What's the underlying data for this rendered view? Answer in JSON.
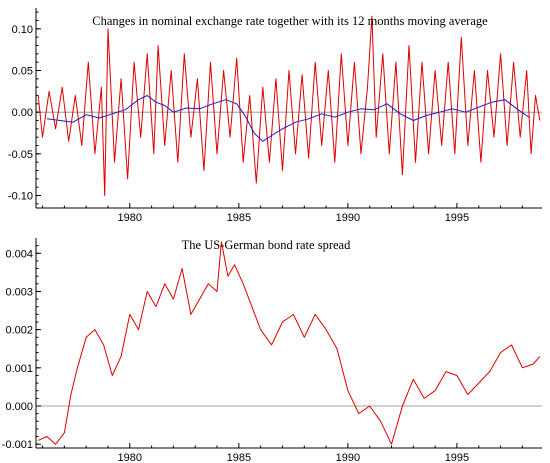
{
  "chart_data": [
    {
      "type": "line",
      "title": "Changes in nominal exchange rate together with its 12 months moving average",
      "xlabel": "",
      "ylabel": "",
      "xlim": [
        1975.7,
        1998.9
      ],
      "ylim": [
        -0.115,
        0.125
      ],
      "x_ticks": [
        1980,
        1985,
        1990,
        1995
      ],
      "y_ticks": [
        -0.1,
        -0.05,
        0.0,
        0.05,
        0.1
      ],
      "y_tick_labels": [
        "-0.10",
        "-0.05",
        "0.00",
        "0.05",
        "0.10"
      ],
      "grid": false,
      "legend": "none",
      "series": [
        {
          "color": "#dd0000",
          "x": [
            1975.8,
            1976.0,
            1976.3,
            1976.6,
            1976.9,
            1977.2,
            1977.5,
            1977.8,
            1978.1,
            1978.4,
            1978.7,
            1978.85,
            1979.0,
            1979.3,
            1979.6,
            1979.9,
            1980.2,
            1980.5,
            1980.8,
            1981.1,
            1981.3,
            1981.6,
            1981.9,
            1982.2,
            1982.5,
            1982.8,
            1983.1,
            1983.4,
            1983.7,
            1984.0,
            1984.3,
            1984.6,
            1984.9,
            1985.2,
            1985.5,
            1985.8,
            1986.1,
            1986.4,
            1986.7,
            1987.0,
            1987.3,
            1987.6,
            1987.9,
            1988.2,
            1988.5,
            1988.8,
            1989.1,
            1989.4,
            1989.7,
            1990.0,
            1990.3,
            1990.6,
            1990.9,
            1991.1,
            1991.3,
            1991.6,
            1991.9,
            1992.2,
            1992.5,
            1992.8,
            1993.1,
            1993.4,
            1993.7,
            1994.0,
            1994.3,
            1994.6,
            1994.9,
            1995.2,
            1995.5,
            1995.8,
            1996.1,
            1996.4,
            1996.7,
            1997.0,
            1997.3,
            1997.6,
            1997.9,
            1998.2,
            1998.4,
            1998.6,
            1998.8
          ],
          "y": [
            0.02,
            -0.03,
            0.025,
            -0.02,
            0.03,
            -0.035,
            0.02,
            -0.04,
            0.06,
            -0.05,
            0.03,
            -0.1,
            0.1,
            -0.06,
            0.04,
            -0.08,
            0.06,
            -0.03,
            0.07,
            -0.05,
            0.08,
            -0.04,
            0.05,
            -0.06,
            0.07,
            -0.03,
            0.04,
            -0.07,
            0.06,
            -0.05,
            0.05,
            -0.03,
            0.065,
            -0.06,
            0.02,
            -0.085,
            0.03,
            -0.06,
            0.04,
            -0.07,
            0.05,
            -0.05,
            0.045,
            -0.055,
            0.06,
            -0.04,
            0.05,
            -0.06,
            0.07,
            -0.04,
            0.06,
            -0.05,
            0.03,
            0.115,
            -0.03,
            0.07,
            -0.05,
            0.06,
            -0.075,
            0.08,
            -0.06,
            0.06,
            -0.05,
            0.05,
            -0.04,
            0.06,
            -0.05,
            0.09,
            -0.04,
            0.05,
            -0.06,
            0.05,
            -0.03,
            0.07,
            -0.04,
            0.06,
            -0.03,
            0.05,
            -0.05,
            0.02,
            -0.01
          ]
        },
        {
          "color": "#1a1acc",
          "x": [
            1976.2,
            1976.8,
            1977.4,
            1978.0,
            1978.6,
            1979.2,
            1979.8,
            1980.4,
            1980.8,
            1981.2,
            1981.6,
            1982.0,
            1982.6,
            1983.2,
            1983.8,
            1984.4,
            1984.9,
            1985.3,
            1985.7,
            1986.1,
            1986.5,
            1987.0,
            1987.6,
            1988.2,
            1988.8,
            1989.4,
            1990.0,
            1990.6,
            1991.2,
            1991.8,
            1992.4,
            1993.0,
            1993.6,
            1994.2,
            1994.8,
            1995.4,
            1996.0,
            1996.6,
            1997.2,
            1997.8,
            1998.3
          ],
          "y": [
            -0.008,
            -0.01,
            -0.012,
            -0.003,
            -0.007,
            -0.002,
            0.003,
            0.015,
            0.02,
            0.012,
            0.008,
            0.0,
            0.005,
            0.004,
            0.01,
            0.015,
            0.01,
            -0.005,
            -0.025,
            -0.035,
            -0.028,
            -0.02,
            -0.012,
            -0.008,
            -0.002,
            -0.006,
            0.0,
            0.004,
            0.003,
            0.01,
            -0.002,
            -0.01,
            -0.004,
            0.0,
            0.004,
            0.0,
            0.006,
            0.012,
            0.015,
            0.003,
            -0.006
          ]
        }
      ]
    },
    {
      "type": "line",
      "title": "The US-German bond rate spread",
      "xlabel": "",
      "ylabel": "",
      "xlim": [
        1975.7,
        1998.9
      ],
      "ylim": [
        -0.0011,
        0.0044
      ],
      "x_ticks": [
        1980,
        1985,
        1990,
        1995
      ],
      "y_ticks": [
        -0.001,
        0.0,
        0.001,
        0.002,
        0.003,
        0.004
      ],
      "y_tick_labels": [
        "-0.001",
        "0.000",
        "0.001",
        "0.002",
        "0.003",
        "0.004"
      ],
      "grid": false,
      "legend": "none",
      "series": [
        {
          "color": "#dd0000",
          "x": [
            1975.8,
            1976.2,
            1976.6,
            1977.0,
            1977.3,
            1977.6,
            1978.0,
            1978.4,
            1978.8,
            1979.2,
            1979.6,
            1980.0,
            1980.4,
            1980.8,
            1981.2,
            1981.6,
            1982.0,
            1982.4,
            1982.8,
            1983.2,
            1983.6,
            1984.0,
            1984.2,
            1984.5,
            1984.8,
            1985.2,
            1985.6,
            1986.0,
            1986.5,
            1987.0,
            1987.5,
            1988.0,
            1988.5,
            1989.0,
            1989.5,
            1990.0,
            1990.5,
            1991.0,
            1991.5,
            1992.0,
            1992.5,
            1993.0,
            1993.5,
            1994.0,
            1994.5,
            1995.0,
            1995.5,
            1996.0,
            1996.5,
            1997.0,
            1997.5,
            1998.0,
            1998.5,
            1998.8
          ],
          "y": [
            -0.0009,
            -0.0008,
            -0.001,
            -0.0007,
            0.0003,
            0.001,
            0.0018,
            0.002,
            0.0016,
            0.0008,
            0.0013,
            0.0024,
            0.002,
            0.003,
            0.0026,
            0.0032,
            0.0028,
            0.0036,
            0.0024,
            0.0028,
            0.0032,
            0.003,
            0.0043,
            0.0034,
            0.0037,
            0.0032,
            0.0026,
            0.002,
            0.0016,
            0.0022,
            0.0024,
            0.0018,
            0.0024,
            0.002,
            0.0015,
            0.0004,
            -0.0002,
            0.0,
            -0.0004,
            -0.001,
            0.0,
            0.0007,
            0.0002,
            0.0004,
            0.0009,
            0.0008,
            0.0003,
            0.0006,
            0.0009,
            0.0014,
            0.0016,
            0.001,
            0.0011,
            0.0013
          ]
        }
      ]
    }
  ]
}
